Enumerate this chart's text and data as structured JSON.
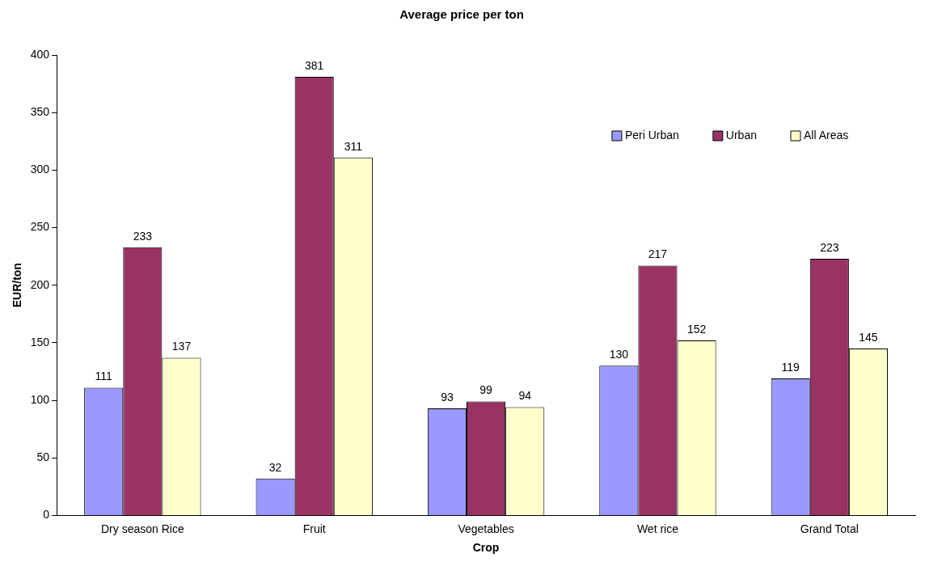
{
  "chart_data": {
    "type": "bar",
    "title": "Average price per ton",
    "xlabel": "Crop",
    "ylabel": "EUR/ton",
    "categories": [
      "Dry season Rice",
      "Fruit",
      "Vegetables",
      "Wet rice",
      "Grand Total"
    ],
    "series": [
      {
        "name": "Peri Urban",
        "color": "#9999ff",
        "values": [
          111,
          32,
          93,
          130,
          119
        ]
      },
      {
        "name": "Urban",
        "color": "#993366",
        "values": [
          233,
          381,
          99,
          217,
          223
        ]
      },
      {
        "name": "All Areas",
        "color": "#ffffcc",
        "values": [
          137,
          311,
          94,
          152,
          145
        ]
      }
    ],
    "ylim": [
      0,
      400
    ],
    "yticks": [
      0,
      50,
      100,
      150,
      200,
      250,
      300,
      350,
      400
    ],
    "grid": false,
    "legend": "top right",
    "data_labels": true
  }
}
